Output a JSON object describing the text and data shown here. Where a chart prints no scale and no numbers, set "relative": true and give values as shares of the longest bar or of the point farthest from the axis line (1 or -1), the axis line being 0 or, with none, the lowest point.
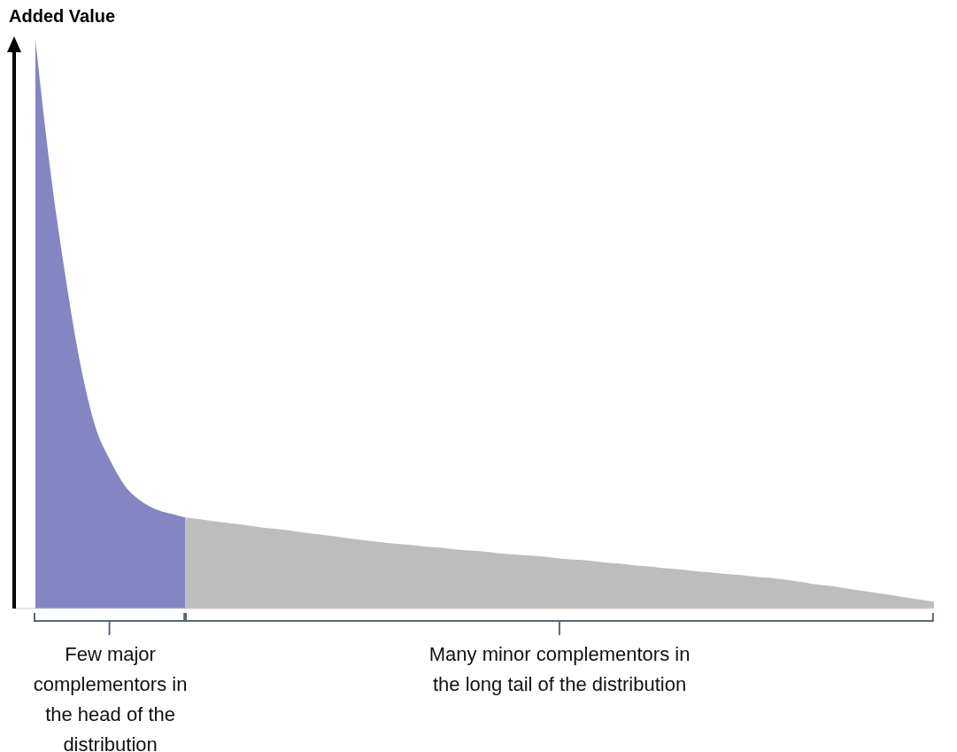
{
  "chart_data": {
    "type": "area",
    "relative": true,
    "ylabel": "Added Value",
    "legend": false,
    "grid": false,
    "categories": [
      null,
      null,
      null,
      null,
      null,
      null,
      null,
      null,
      null,
      null,
      null,
      null,
      null,
      null,
      null,
      null,
      null,
      null,
      null,
      null,
      null,
      null,
      null,
      null,
      null,
      null,
      null,
      null,
      null,
      null,
      null,
      null,
      null,
      null,
      null,
      null,
      null,
      null,
      null,
      null,
      null,
      null,
      null,
      null,
      null,
      null,
      null,
      null,
      null,
      null,
      null,
      null,
      null,
      null,
      null,
      null,
      null,
      null,
      null,
      null,
      null
    ],
    "series": [
      {
        "color": "#8585c4",
        "values": [
          1.0,
          0.77,
          0.585,
          0.43,
          0.32,
          0.26,
          0.215,
          0.19,
          0.175,
          0.167,
          0.16,
          null,
          null,
          null,
          null,
          null,
          null,
          null,
          null,
          null,
          null,
          null,
          null,
          null,
          null,
          null,
          null,
          null,
          null,
          null,
          null,
          null,
          null,
          null,
          null,
          null,
          null,
          null,
          null,
          null,
          null,
          null,
          null,
          null,
          null,
          null,
          null,
          null,
          null,
          null,
          null,
          null,
          null,
          null,
          null,
          null,
          null,
          null,
          null,
          null,
          null
        ]
      },
      {
        "color": "#bdbdbd",
        "values": [
          null,
          null,
          null,
          null,
          null,
          null,
          null,
          null,
          null,
          null,
          0.16,
          0.157,
          0.153,
          0.15,
          0.147,
          0.143,
          0.14,
          0.137,
          0.133,
          0.13,
          0.127,
          0.123,
          0.12,
          0.117,
          0.114,
          0.112,
          0.109,
          0.107,
          0.104,
          0.102,
          0.1,
          0.097,
          0.095,
          0.093,
          0.091,
          0.088,
          0.086,
          0.084,
          0.081,
          0.079,
          0.076,
          0.074,
          0.071,
          0.069,
          0.066,
          0.064,
          0.061,
          0.059,
          0.056,
          0.054,
          0.051,
          0.047,
          0.043,
          0.04,
          0.036,
          0.032,
          0.028,
          0.024,
          0.02,
          0.016,
          0.012
        ]
      }
    ],
    "annotations": [
      "Few major complementors in the head of the distribution",
      "Many minor complementors in the long tail of the distribution"
    ]
  }
}
